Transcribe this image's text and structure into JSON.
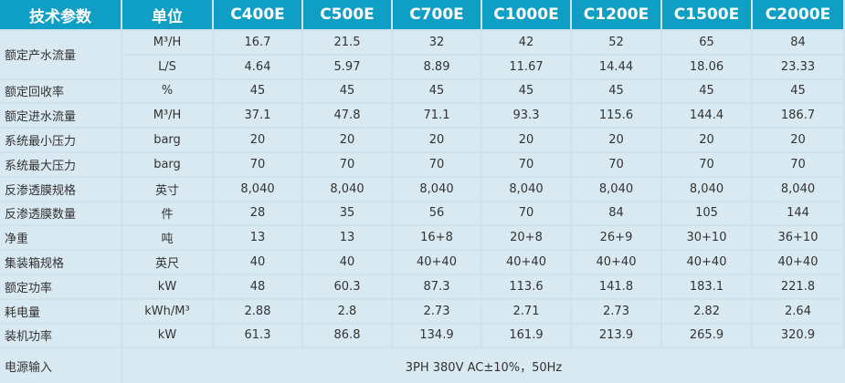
{
  "header": [
    "技术参数",
    "单位",
    "C400E",
    "C500E",
    "C700E",
    "C1000E",
    "C1200E",
    "C1500E",
    "C2000E"
  ],
  "rows": [
    {
      "param": "额定产水流量",
      "sub": [
        {
          "unit": "M³/H",
          "values": [
            "16.7",
            "21.5",
            "32",
            "42",
            "52",
            "65",
            "84"
          ]
        },
        {
          "unit": "L/S",
          "values": [
            "4.64",
            "5.97",
            "8.89",
            "11.67",
            "14.44",
            "18.06",
            "23.33"
          ]
        }
      ]
    },
    {
      "param": "额定回收率",
      "unit": "%",
      "values": [
        "45",
        "45",
        "45",
        "45",
        "45",
        "45",
        "45"
      ]
    },
    {
      "param": "额定进水流量",
      "unit": "M³/H",
      "values": [
        "37.1",
        "47.8",
        "71.1",
        "93.3",
        "115.6",
        "144.4",
        "186.7"
      ]
    },
    {
      "param": "系统最小压力",
      "unit": "barg",
      "values": [
        "20",
        "20",
        "20",
        "20",
        "20",
        "20",
        "20"
      ]
    },
    {
      "param": "系统最大压力",
      "unit": "barg",
      "values": [
        "70",
        "70",
        "70",
        "70",
        "70",
        "70",
        "70"
      ]
    },
    {
      "param": "反渗透膜规格",
      "unit": "英寸",
      "values": [
        "8,040",
        "8,040",
        "8,040",
        "8,040",
        "8,040",
        "8,040",
        "8,040"
      ]
    },
    {
      "param": "反渗透膜数量",
      "unit": "件",
      "values": [
        "28",
        "35",
        "56",
        "70",
        "84",
        "105",
        "144"
      ]
    },
    {
      "param": "净重",
      "unit": "吨",
      "values": [
        "13",
        "13",
        "16+8",
        "20+8",
        "26+9",
        "30+10",
        "36+10"
      ]
    },
    {
      "param": "集装箱规格",
      "unit": "英尺",
      "values": [
        "40",
        "40",
        "40+40",
        "40+40",
        "40+40",
        "40+40",
        "40+40"
      ]
    },
    {
      "param": "额定功率",
      "unit": "kW",
      "values": [
        "48",
        "60.3",
        "87.3",
        "113.6",
        "141.8",
        "183.1",
        "221.8"
      ]
    },
    {
      "param": "耗电量",
      "unit": "kWh/M³",
      "values": [
        "2.88",
        "2.8",
        "2.73",
        "2.71",
        "2.73",
        "2.82",
        "2.64"
      ]
    },
    {
      "param": "装机功率",
      "unit": "kW",
      "values": [
        "61.3",
        "86.8",
        "134.9",
        "161.9",
        "213.9",
        "265.9",
        "320.9"
      ]
    }
  ],
  "footer": {
    "param": "电源输入",
    "value": "3PH 380V AC±10%，50Hz"
  }
}
